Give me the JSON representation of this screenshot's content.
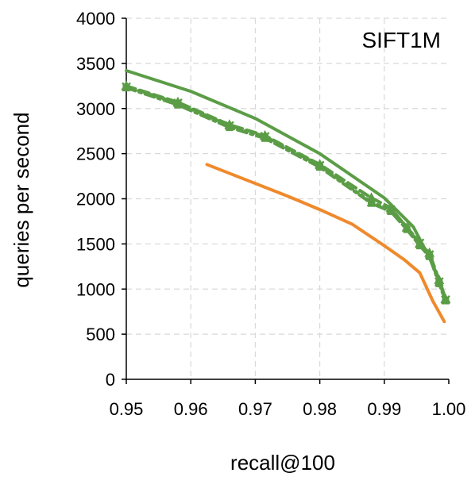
{
  "chart_data": {
    "type": "line",
    "title": "SIFT1M",
    "xlabel": "recall@100",
    "ylabel": "queries per second",
    "xlim": [
      0.95,
      1.0
    ],
    "ylim": [
      0,
      4000
    ],
    "x_ticks": [
      "0.95",
      "0.96",
      "0.97",
      "0.98",
      "0.99",
      "1.00"
    ],
    "y_ticks": [
      "0",
      "500",
      "1000",
      "1500",
      "2000",
      "2500",
      "3000",
      "3500",
      "4000"
    ],
    "grid": true,
    "colors": {
      "green": "#5b9d46",
      "orange": "#ef8a2c"
    },
    "series": [
      {
        "color": "#5b9d46",
        "style": "solid",
        "points": [
          [
            0.95,
            3420
          ],
          [
            0.96,
            3190
          ],
          [
            0.97,
            2890
          ],
          [
            0.98,
            2500
          ],
          [
            0.99,
            2010
          ],
          [
            0.9945,
            1690
          ],
          [
            0.997,
            1350
          ],
          [
            0.999,
            1000
          ],
          [
            0.9995,
            890
          ]
        ]
      },
      {
        "color": "#5b9d46",
        "style": "dashed",
        "marker": "triangle",
        "points": [
          [
            0.95,
            3250
          ],
          [
            0.958,
            3070
          ],
          [
            0.966,
            2820
          ],
          [
            0.9715,
            2700
          ],
          [
            0.98,
            2380
          ],
          [
            0.988,
            2010
          ],
          [
            0.991,
            1900
          ],
          [
            0.9935,
            1680
          ],
          [
            0.9955,
            1500
          ],
          [
            0.997,
            1400
          ],
          [
            0.9985,
            1100
          ],
          [
            0.9995,
            890
          ]
        ]
      },
      {
        "color": "#5b9d46",
        "style": "dotted",
        "marker": "x",
        "points": [
          [
            0.95,
            3240
          ],
          [
            0.958,
            3060
          ],
          [
            0.966,
            2810
          ],
          [
            0.9715,
            2690
          ],
          [
            0.98,
            2370
          ],
          [
            0.988,
            1960
          ],
          [
            0.991,
            1880
          ],
          [
            0.9935,
            1690
          ],
          [
            0.9955,
            1510
          ],
          [
            0.997,
            1380
          ],
          [
            0.9985,
            1080
          ],
          [
            0.9995,
            880
          ]
        ]
      },
      {
        "color": "#5b9d46",
        "style": "dashdot",
        "marker": "square",
        "points": [
          [
            0.95,
            3230
          ],
          [
            0.958,
            3040
          ],
          [
            0.966,
            2790
          ],
          [
            0.9715,
            2670
          ],
          [
            0.98,
            2350
          ],
          [
            0.988,
            1950
          ],
          [
            0.991,
            1860
          ],
          [
            0.9935,
            1660
          ],
          [
            0.9955,
            1480
          ],
          [
            0.997,
            1360
          ],
          [
            0.9985,
            1060
          ],
          [
            0.9995,
            870
          ]
        ]
      },
      {
        "color": "#ef8a2c",
        "style": "solid",
        "points": [
          [
            0.9625,
            2380
          ],
          [
            0.97,
            2170
          ],
          [
            0.975,
            2030
          ],
          [
            0.98,
            1880
          ],
          [
            0.985,
            1720
          ],
          [
            0.99,
            1480
          ],
          [
            0.993,
            1330
          ],
          [
            0.9955,
            1180
          ],
          [
            0.9975,
            870
          ],
          [
            0.9993,
            640
          ]
        ]
      }
    ]
  }
}
